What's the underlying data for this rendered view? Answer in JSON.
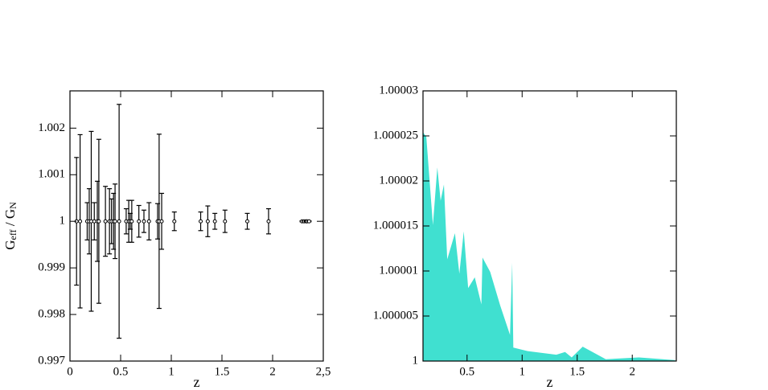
{
  "chart_data": [
    {
      "type": "errorbar",
      "xlabel": "z",
      "ylabel": [
        "G",
        "eff",
        " / G",
        "N"
      ],
      "x": [
        0.065,
        0.1,
        0.17,
        0.19,
        0.21,
        0.24,
        0.27,
        0.285,
        0.35,
        0.39,
        0.41,
        0.43,
        0.445,
        0.485,
        0.555,
        0.58,
        0.595,
        0.61,
        0.68,
        0.73,
        0.78,
        0.865,
        0.88,
        0.905,
        1.03,
        1.29,
        1.36,
        1.43,
        1.53,
        1.75,
        1.96,
        2.29,
        2.31,
        2.33,
        2.34,
        2.36
      ],
      "values": [
        1,
        1,
        1,
        1,
        1,
        1,
        1,
        1,
        1,
        1,
        1,
        1,
        1,
        1,
        1,
        1,
        1,
        1,
        1,
        1,
        1,
        1,
        1,
        1,
        1,
        1,
        1,
        1,
        1,
        1,
        1,
        1,
        1,
        1,
        1,
        1
      ],
      "errors": [
        0.00137,
        0.00186,
        0.0004,
        0.0007,
        0.00193,
        0.0004,
        0.00086,
        0.00176,
        0.00075,
        0.0007,
        0.00048,
        0.0006,
        0.0008,
        0.00251,
        0.00027,
        0.00045,
        0.00017,
        0.00045,
        0.00034,
        0.00024,
        0.0004,
        0.00038,
        0.00187,
        0.0006,
        0.0002,
        0.0002,
        0.00033,
        0.00017,
        0.00024,
        0.00017,
        0.00027,
        1e-05,
        1e-05,
        1e-05,
        1e-05,
        1e-05
      ],
      "color": "#000000",
      "xlim": [
        0,
        2.5
      ],
      "xticks": [
        0,
        0.5,
        1,
        1.5,
        2,
        {
          "value": 2.5,
          "label": "2,5"
        }
      ],
      "ylim": [
        0.997,
        1.0028
      ],
      "yticks": [
        0.997,
        0.998,
        0.999,
        1,
        1.001,
        1.002
      ]
    },
    {
      "type": "area",
      "xlabel": "z",
      "color": "#40e0d0",
      "x": [
        0.1,
        0.13,
        0.19,
        0.23,
        0.26,
        0.29,
        0.32,
        0.39,
        0.43,
        0.47,
        0.51,
        0.57,
        0.63,
        0.64,
        0.71,
        0.8,
        0.89,
        0.91,
        0.92,
        1.05,
        1.31,
        1.39,
        1.45,
        1.55,
        1.76,
        2.06,
        2.39
      ],
      "values": [
        1.0000254,
        1.0000249,
        1.0000151,
        1.0000215,
        1.0000178,
        1.0000196,
        1.0000113,
        1.0000142,
        1.0000097,
        1.0000144,
        1.0000081,
        1.0000093,
        1.0000063,
        1.0000115,
        1.0000099,
        1.0000062,
        1.0000029,
        1.0000109,
        1.0000015,
        1.0000011,
        1.0000007,
        1.000001,
        1.0000004,
        1.0000016,
        1.0000002,
        1.0000004,
        1.0000001
      ],
      "xlim": [
        0.1,
        2.4
      ],
      "xticks": [
        0.5,
        1,
        1.5,
        2
      ],
      "ylim": [
        1,
        1.00003
      ],
      "yticks": [
        1,
        1.000005,
        1.00001,
        1.000015,
        1.00002,
        1.000025,
        1.00003
      ]
    }
  ]
}
